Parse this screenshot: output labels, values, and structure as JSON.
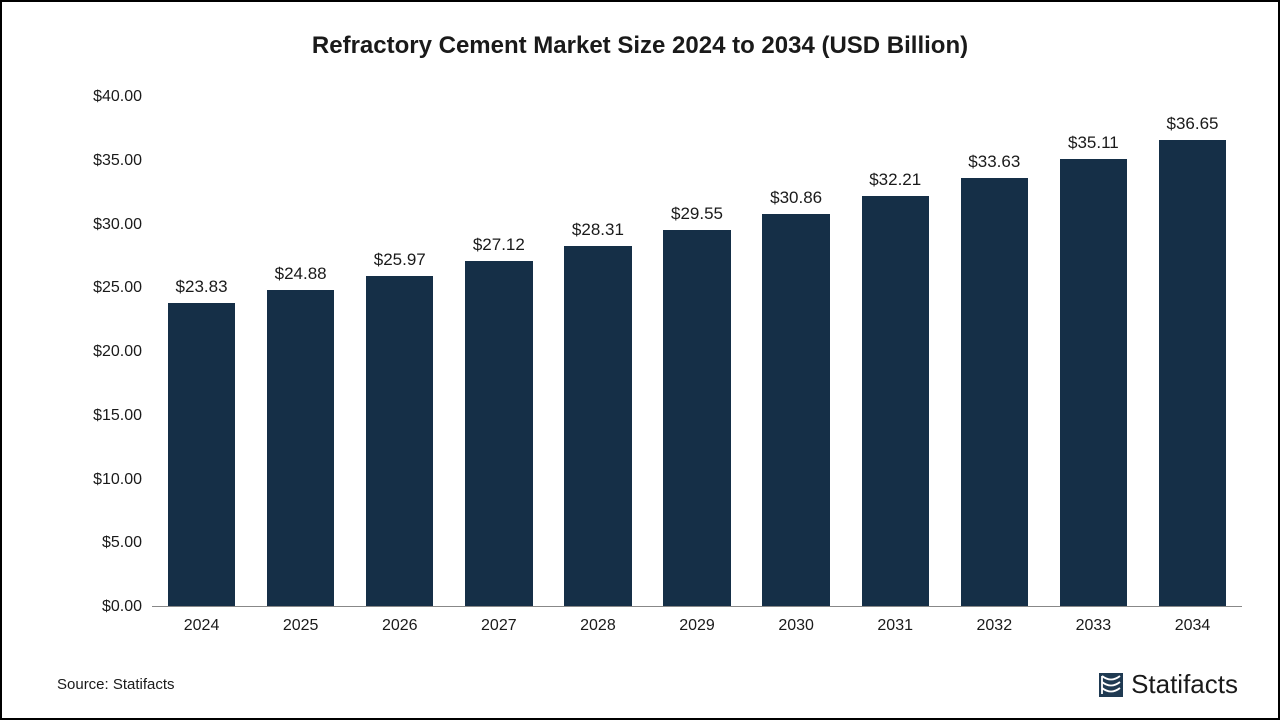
{
  "chart": {
    "type": "bar",
    "title": "Refractory Cement Market Size 2024 to 2034 (USD Billion)",
    "title_fontsize": 24,
    "title_fontweight": "bold",
    "title_color": "#1a1a1a",
    "background_color": "#ffffff",
    "border_color": "#000000",
    "categories": [
      "2024",
      "2025",
      "2026",
      "2027",
      "2028",
      "2029",
      "2030",
      "2031",
      "2032",
      "2033",
      "2034"
    ],
    "values": [
      23.83,
      24.88,
      25.97,
      27.12,
      28.31,
      29.55,
      30.86,
      32.21,
      33.63,
      35.11,
      36.65
    ],
    "value_labels": [
      "$23.83",
      "$24.88",
      "$25.97",
      "$27.12",
      "$28.31",
      "$29.55",
      "$30.86",
      "$32.21",
      "$33.63",
      "$35.11",
      "$36.65"
    ],
    "bar_color": "#152f47",
    "bar_width": 0.68,
    "ylim": [
      0,
      40
    ],
    "ytick_step": 5,
    "ytick_labels": [
      "$0.00",
      "$5.00",
      "$10.00",
      "$15.00",
      "$20.00",
      "$25.00",
      "$30.00",
      "$35.00",
      "$40.00"
    ],
    "ytick_values": [
      0,
      5,
      10,
      15,
      20,
      25,
      30,
      35,
      40
    ],
    "axis_color": "#888888",
    "tick_label_fontsize": 16,
    "tick_label_color": "#1a1a1a",
    "value_label_fontsize": 17,
    "value_label_color": "#1a1a1a",
    "grid": false
  },
  "footer": {
    "source": "Source: Statifacts",
    "brand": "Statifacts",
    "brand_color": "#1a1a1a",
    "brand_icon_color": "#1f3a52"
  }
}
